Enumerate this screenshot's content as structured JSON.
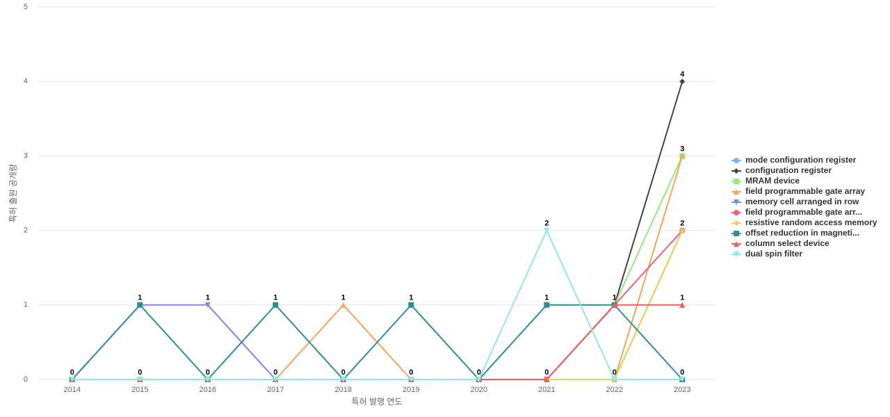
{
  "chart_data": {
    "type": "line",
    "x_label": "특허 발행 연도",
    "y_label": "특허 출원 공개량",
    "categories": [
      "2014",
      "2015",
      "2016",
      "2017",
      "2018",
      "2019",
      "2020",
      "2021",
      "2022",
      "2023"
    ],
    "ylim": [
      0,
      5
    ],
    "yticks": [
      0,
      1,
      2,
      3,
      4,
      5
    ],
    "grid": true,
    "legend": "right",
    "series": [
      {
        "name": "mode configuration register",
        "color": "#7cb5ec",
        "marker": "circle",
        "values": [
          0,
          0,
          0,
          0,
          0,
          0,
          0,
          0,
          0,
          2
        ]
      },
      {
        "name": "configuration register",
        "color": "#434348",
        "marker": "diamond",
        "values": [
          0,
          0,
          0,
          0,
          0,
          0,
          0,
          0,
          1,
          4
        ]
      },
      {
        "name": "MRAM device",
        "color": "#90ed7d",
        "marker": "square",
        "values": [
          0,
          0,
          0,
          0,
          0,
          0,
          0,
          0,
          1,
          3
        ]
      },
      {
        "name": "field programmable gate array",
        "color": "#f7a35c",
        "marker": "triangle",
        "values": [
          0,
          0,
          0,
          0,
          1,
          0,
          0,
          0,
          0,
          3
        ]
      },
      {
        "name": "memory cell arranged in row",
        "color": "#8085e9",
        "marker": "triangle-down",
        "values": [
          0,
          1,
          1,
          0,
          0,
          0,
          0,
          0,
          0,
          0
        ]
      },
      {
        "name": "field programmable gate arr...",
        "color": "#f15c80",
        "marker": "circle",
        "values": [
          0,
          0,
          0,
          0,
          0,
          0,
          0,
          0,
          1,
          2
        ]
      },
      {
        "name": "resistive random access memory",
        "color": "#e4d354",
        "marker": "diamond",
        "values": [
          0,
          0,
          0,
          0,
          0,
          0,
          0,
          0,
          0,
          2
        ]
      },
      {
        "name": "offset reduction in magneti...",
        "color": "#2b908f",
        "marker": "square",
        "values": [
          0,
          1,
          0,
          1,
          0,
          1,
          0,
          1,
          1,
          0
        ]
      },
      {
        "name": "column select device",
        "color": "#f45b5b",
        "marker": "triangle",
        "values": [
          0,
          0,
          0,
          0,
          0,
          0,
          0,
          0,
          1,
          1
        ]
      },
      {
        "name": "dual spin filter",
        "color": "#91e8e1",
        "marker": "triangle-down",
        "values": [
          0,
          0,
          0,
          0,
          0,
          0,
          0,
          2,
          0,
          0
        ]
      }
    ]
  }
}
